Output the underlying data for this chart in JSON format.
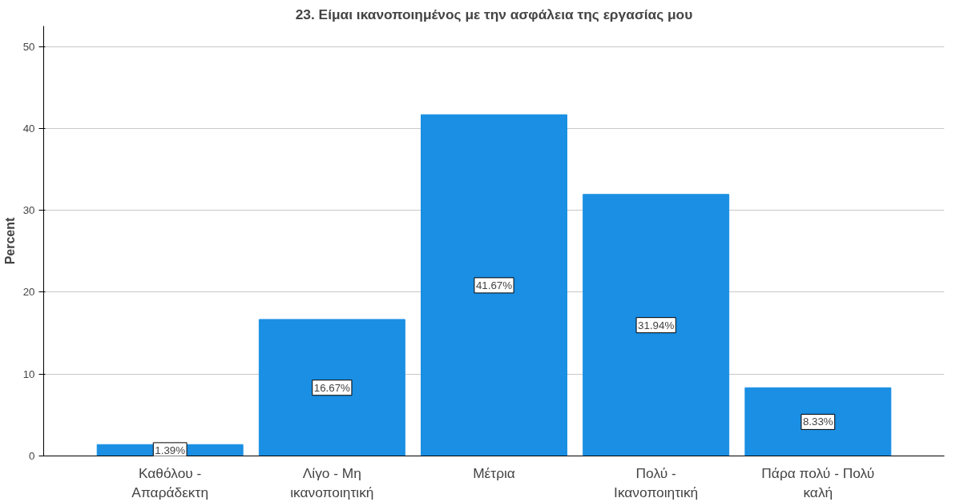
{
  "chart_data": {
    "type": "bar",
    "title": "23. Είμαι ικανοποιημένος με την ασφάλεια της εργασίας μου",
    "ylabel": "Percent",
    "categories": [
      "Καθόλου -\nΑπαράδεκτη",
      "Λίγο - Μη\nικανοποιητική",
      "Μέτρια",
      "Πολύ -\nΙκανοποιητική",
      "Πάρα πολύ - Πολύ\nκαλή"
    ],
    "values": [
      1.39,
      16.67,
      41.67,
      31.94,
      8.33
    ],
    "value_labels": [
      "1.39%",
      "16.67%",
      "41.67%",
      "31.94%",
      "8.33%"
    ],
    "color": "#1a8fe3",
    "ylim": [
      0,
      52.5
    ],
    "yticks": [
      0,
      10,
      20,
      30,
      40,
      50
    ],
    "grid": "y"
  }
}
